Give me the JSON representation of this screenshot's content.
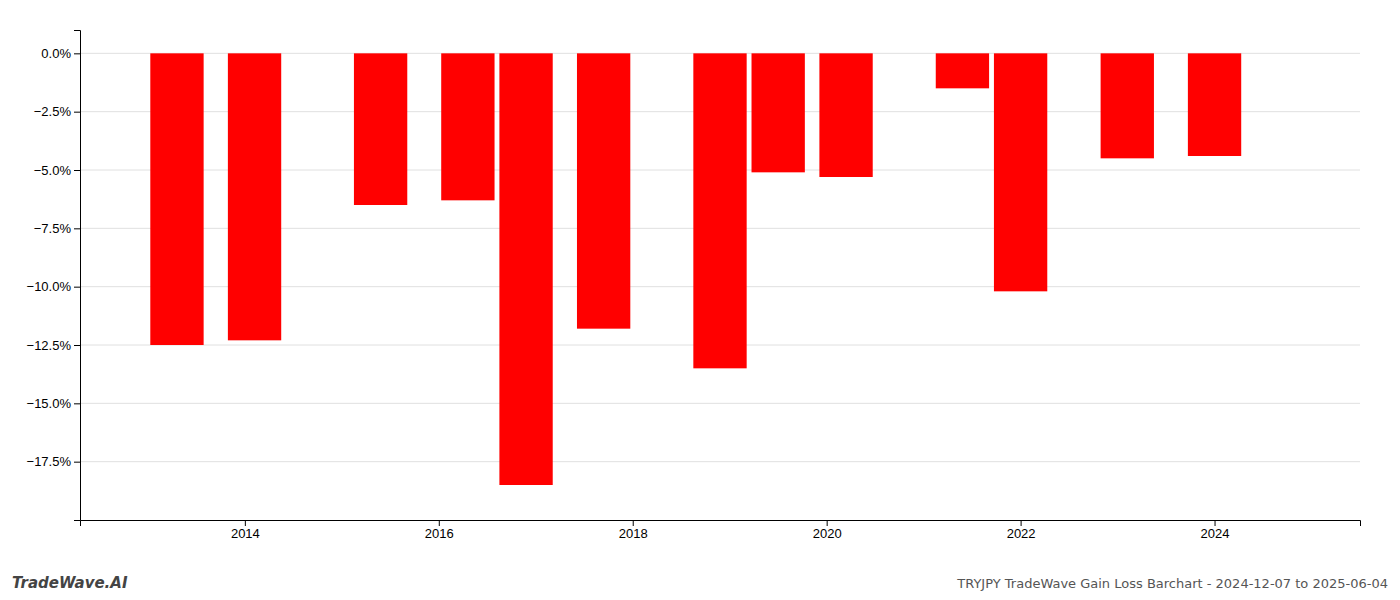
{
  "chart_data": {
    "type": "bar",
    "x": [
      2013.3,
      2014.1,
      2015.4,
      2016.3,
      2016.9,
      2017.7,
      2018.9,
      2019.5,
      2020.2,
      2021.4,
      2022.0,
      2023.1,
      2024.0
    ],
    "values": [
      -12.5,
      -12.3,
      -6.5,
      -6.3,
      -18.5,
      -11.8,
      -13.5,
      -5.1,
      -5.3,
      -1.5,
      -10.2,
      -4.5,
      -4.4
    ],
    "color": "#ff0000",
    "xlim": [
      2012.3,
      2025.5
    ],
    "xticks": [
      2014,
      2016,
      2018,
      2020,
      2022,
      2024
    ],
    "ylim": [
      -20.0,
      1.0
    ],
    "yticks": [
      {
        "value": 0.0,
        "label": "0.0%"
      },
      {
        "value": -2.5,
        "label": "−2.5%"
      },
      {
        "value": -5.0,
        "label": "−5.0%"
      },
      {
        "value": -7.5,
        "label": "−7.5%"
      },
      {
        "value": -10.0,
        "label": "−10.0%"
      },
      {
        "value": -12.5,
        "label": "−12.5%"
      },
      {
        "value": -15.0,
        "label": "−15.0%"
      },
      {
        "value": -17.5,
        "label": "−17.5%"
      }
    ],
    "grid": true,
    "annotations": [
      "TradeWave.AI",
      "TRYJPY TradeWave Gain Loss Barchart - 2024-12-07 to 2025-06-04"
    ]
  }
}
